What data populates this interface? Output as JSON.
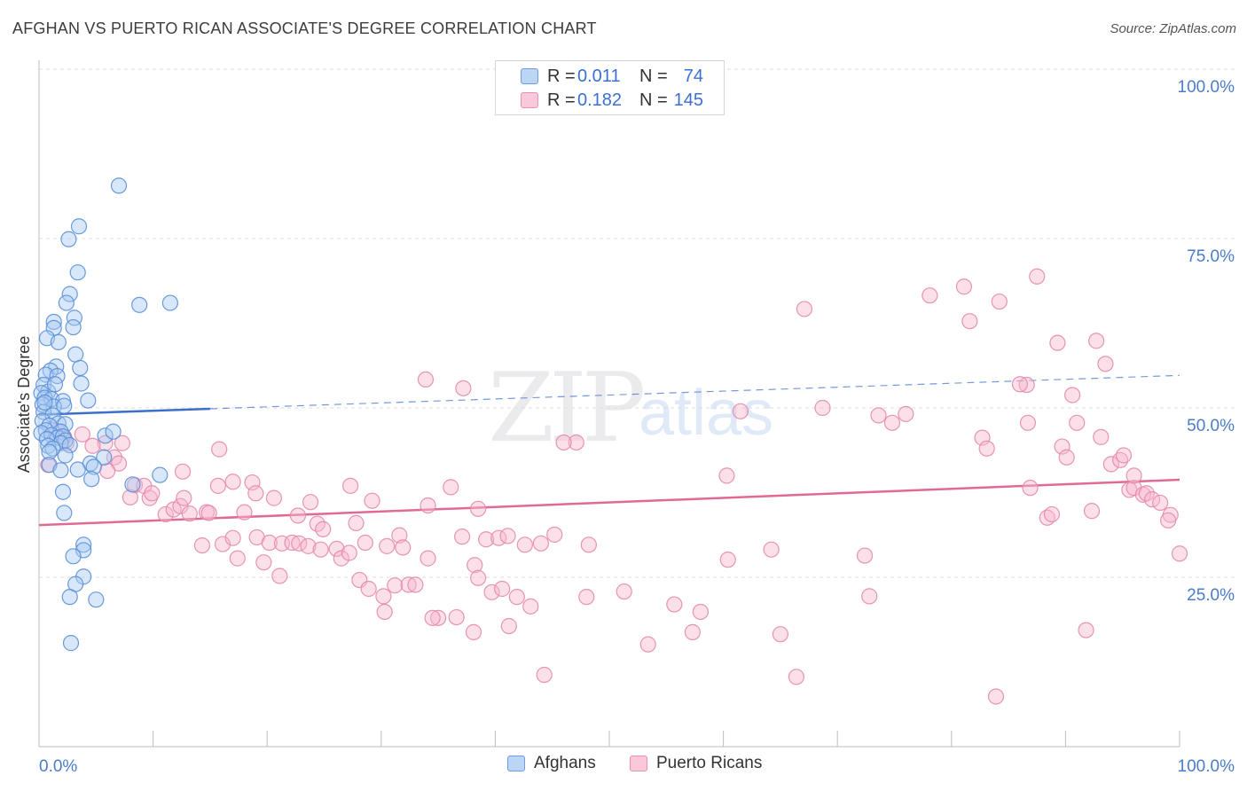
{
  "title": "AFGHAN VS PUERTO RICAN ASSOCIATE'S DEGREE CORRELATION CHART",
  "source": "Source: ZipAtlas.com",
  "watermark": {
    "zip": "ZIP",
    "atlas": "atlas"
  },
  "colors": {
    "afghans_fill": "#a9c9f2",
    "afghans_stroke": "#5b8fd8",
    "afghans_line": "#3a6fcc",
    "puerto_fill": "#f7b8cf",
    "puerto_stroke": "#e58aab",
    "puerto_line": "#e06a95",
    "tick_label": "#4a7cc9",
    "grid": "#dcdcdc"
  },
  "legend_top": {
    "rows": [
      {
        "r_label": "R =",
        "r_value": "0.011",
        "n_label": "N =",
        "n_value": "74"
      },
      {
        "r_label": "R =",
        "r_value": "0.182",
        "n_label": "N =",
        "n_value": "145"
      }
    ]
  },
  "legend_bottom": [
    "Afghans",
    "Puerto Ricans"
  ],
  "chart_data": {
    "type": "scatter",
    "title": "AFGHAN VS PUERTO RICAN ASSOCIATE'S DEGREE CORRELATION CHART",
    "xlabel": "",
    "ylabel": "Associate's Degree",
    "xlim": [
      0,
      100
    ],
    "ylim": [
      0,
      100
    ],
    "x_tick_labels": [
      "0.0%",
      "100.0%"
    ],
    "y_ticks": [
      25,
      50,
      75,
      100
    ],
    "y_tick_labels": [
      "25.0%",
      "50.0%",
      "75.0%",
      "100.0%"
    ],
    "grid": true,
    "legend_position": "top-center",
    "series": [
      {
        "name": "Afghans",
        "R": 0.011,
        "N": 74,
        "trend": {
          "x0": 0,
          "y0": 49.0,
          "x1": 100,
          "y1": 54.8,
          "solid_until_x": 15
        },
        "points": [
          [
            7.0,
            82.8
          ],
          [
            3.5,
            76.8
          ],
          [
            2.6,
            74.9
          ],
          [
            3.4,
            70.0
          ],
          [
            2.7,
            66.8
          ],
          [
            2.4,
            65.5
          ],
          [
            8.8,
            65.2
          ],
          [
            11.5,
            65.5
          ],
          [
            3.1,
            63.3
          ],
          [
            1.3,
            62.7
          ],
          [
            1.3,
            61.8
          ],
          [
            3.0,
            61.9
          ],
          [
            0.7,
            60.3
          ],
          [
            1.7,
            59.7
          ],
          [
            3.2,
            57.9
          ],
          [
            1.5,
            56.1
          ],
          [
            3.6,
            55.9
          ],
          [
            1.0,
            55.5
          ],
          [
            0.6,
            54.9
          ],
          [
            1.6,
            54.7
          ],
          [
            0.4,
            53.4
          ],
          [
            0.8,
            52.4
          ],
          [
            1.4,
            53.5
          ],
          [
            3.7,
            53.6
          ],
          [
            0.2,
            52.2
          ],
          [
            0.5,
            51.5
          ],
          [
            1.1,
            51.3
          ],
          [
            2.1,
            51.0
          ],
          [
            4.3,
            51.1
          ],
          [
            0.3,
            50.5
          ],
          [
            1.3,
            50.2
          ],
          [
            2.2,
            50.3
          ],
          [
            0.4,
            49.4
          ],
          [
            1.2,
            48.9
          ],
          [
            0.3,
            48.1
          ],
          [
            1.7,
            47.7
          ],
          [
            0.9,
            47.4
          ],
          [
            2.3,
            47.6
          ],
          [
            0.6,
            46.7
          ],
          [
            1.9,
            46.5
          ],
          [
            0.2,
            46.3
          ],
          [
            1.1,
            46.0
          ],
          [
            1.6,
            45.6
          ],
          [
            2.1,
            45.8
          ],
          [
            2.3,
            45.2
          ],
          [
            0.7,
            45.4
          ],
          [
            1.9,
            44.8
          ],
          [
            0.8,
            44.4
          ],
          [
            2.7,
            44.5
          ],
          [
            1.2,
            44.0
          ],
          [
            0.9,
            43.5
          ],
          [
            2.3,
            43.0
          ],
          [
            5.8,
            45.9
          ],
          [
            5.7,
            42.7
          ],
          [
            0.9,
            41.6
          ],
          [
            4.5,
            41.8
          ],
          [
            4.8,
            41.3
          ],
          [
            3.4,
            40.9
          ],
          [
            1.9,
            40.8
          ],
          [
            8.2,
            38.7
          ],
          [
            10.6,
            40.1
          ],
          [
            4.6,
            39.5
          ],
          [
            2.1,
            37.6
          ],
          [
            2.2,
            34.5
          ],
          [
            3.9,
            29.8
          ],
          [
            3.9,
            29.0
          ],
          [
            3.0,
            28.1
          ],
          [
            3.9,
            25.1
          ],
          [
            3.2,
            24.0
          ],
          [
            2.7,
            22.1
          ],
          [
            5.0,
            21.7
          ],
          [
            2.8,
            15.3
          ],
          [
            6.5,
            46.5
          ],
          [
            0.5,
            50.8
          ]
        ]
      },
      {
        "name": "Puerto Ricans",
        "R": 0.182,
        "N": 145,
        "trend": {
          "x0": 0,
          "y0": 32.7,
          "x1": 100,
          "y1": 39.4
        },
        "points": [
          [
            1.6,
            46.6
          ],
          [
            2.2,
            45.7
          ],
          [
            2.4,
            44.8
          ],
          [
            3.8,
            46.1
          ],
          [
            5.8,
            44.8
          ],
          [
            7.3,
            44.8
          ],
          [
            4.7,
            44.4
          ],
          [
            6.6,
            42.7
          ],
          [
            7.0,
            41.8
          ],
          [
            6.0,
            40.7
          ],
          [
            0.8,
            41.6
          ],
          [
            8.4,
            38.6
          ],
          [
            8.0,
            36.8
          ],
          [
            9.2,
            38.5
          ],
          [
            9.7,
            36.7
          ],
          [
            9.9,
            37.4
          ],
          [
            11.1,
            34.3
          ],
          [
            11.8,
            35.0
          ],
          [
            12.4,
            35.5
          ],
          [
            12.7,
            36.7
          ],
          [
            13.2,
            34.4
          ],
          [
            14.7,
            34.6
          ],
          [
            14.9,
            34.5
          ],
          [
            15.7,
            38.5
          ],
          [
            12.6,
            40.6
          ],
          [
            15.8,
            43.9
          ],
          [
            17.0,
            39.1
          ],
          [
            18.7,
            39.0
          ],
          [
            19.0,
            37.4
          ],
          [
            18.0,
            34.6
          ],
          [
            20.6,
            36.7
          ],
          [
            22.7,
            34.1
          ],
          [
            23.8,
            36.1
          ],
          [
            24.4,
            32.9
          ],
          [
            24.9,
            32.1
          ],
          [
            27.3,
            38.5
          ],
          [
            27.8,
            33.0
          ],
          [
            29.2,
            36.3
          ],
          [
            31.6,
            31.2
          ],
          [
            33.9,
            54.2
          ],
          [
            37.2,
            52.9
          ],
          [
            34.1,
            35.6
          ],
          [
            36.1,
            38.3
          ],
          [
            38.5,
            35.1
          ],
          [
            37.1,
            31.0
          ],
          [
            39.2,
            30.6
          ],
          [
            40.3,
            30.8
          ],
          [
            41.1,
            31.1
          ],
          [
            42.6,
            29.8
          ],
          [
            47.1,
            44.9
          ],
          [
            46.0,
            44.9
          ],
          [
            48.2,
            29.8
          ],
          [
            45.2,
            31.3
          ],
          [
            44.0,
            30.0
          ],
          [
            14.3,
            29.7
          ],
          [
            16.1,
            29.9
          ],
          [
            17.0,
            30.8
          ],
          [
            19.1,
            30.9
          ],
          [
            20.2,
            30.1
          ],
          [
            21.3,
            30.0
          ],
          [
            22.2,
            30.1
          ],
          [
            22.8,
            30.0
          ],
          [
            23.6,
            29.6
          ],
          [
            24.7,
            29.1
          ],
          [
            26.1,
            29.2
          ],
          [
            26.5,
            27.8
          ],
          [
            27.2,
            28.6
          ],
          [
            28.6,
            30.1
          ],
          [
            30.5,
            29.6
          ],
          [
            31.9,
            29.4
          ],
          [
            17.4,
            27.8
          ],
          [
            19.7,
            27.2
          ],
          [
            21.1,
            25.2
          ],
          [
            28.1,
            24.6
          ],
          [
            28.9,
            23.3
          ],
          [
            30.2,
            22.2
          ],
          [
            31.2,
            23.8
          ],
          [
            32.4,
            23.9
          ],
          [
            33.0,
            23.9
          ],
          [
            34.1,
            27.8
          ],
          [
            38.2,
            26.8
          ],
          [
            38.5,
            24.9
          ],
          [
            39.7,
            22.8
          ],
          [
            40.6,
            23.3
          ],
          [
            41.9,
            22.1
          ],
          [
            43.1,
            20.7
          ],
          [
            36.6,
            19.1
          ],
          [
            38.1,
            16.9
          ],
          [
            41.2,
            17.8
          ],
          [
            44.3,
            10.6
          ],
          [
            30.3,
            19.9
          ],
          [
            35.0,
            19.0
          ],
          [
            34.5,
            19.0
          ],
          [
            48.0,
            22.1
          ],
          [
            51.3,
            22.9
          ],
          [
            53.4,
            15.1
          ],
          [
            55.7,
            21.0
          ],
          [
            57.3,
            16.9
          ],
          [
            58.0,
            19.9
          ],
          [
            60.4,
            27.6
          ],
          [
            60.3,
            40.0
          ],
          [
            61.5,
            49.5
          ],
          [
            67.1,
            64.6
          ],
          [
            64.2,
            29.1
          ],
          [
            66.4,
            10.3
          ],
          [
            65.0,
            16.6
          ],
          [
            68.7,
            50.0
          ],
          [
            72.4,
            28.2
          ],
          [
            72.8,
            22.2
          ],
          [
            73.6,
            48.9
          ],
          [
            74.8,
            47.8
          ],
          [
            76.0,
            49.1
          ],
          [
            78.1,
            66.6
          ],
          [
            81.1,
            67.9
          ],
          [
            81.6,
            62.8
          ],
          [
            82.7,
            45.6
          ],
          [
            83.1,
            44.0
          ],
          [
            84.2,
            65.7
          ],
          [
            83.9,
            7.4
          ],
          [
            86.6,
            53.4
          ],
          [
            86.7,
            47.8
          ],
          [
            86.9,
            38.2
          ],
          [
            87.5,
            69.4
          ],
          [
            88.4,
            33.8
          ],
          [
            88.8,
            34.3
          ],
          [
            89.3,
            59.6
          ],
          [
            89.7,
            44.3
          ],
          [
            90.1,
            42.7
          ],
          [
            90.6,
            51.9
          ],
          [
            91.0,
            47.8
          ],
          [
            91.8,
            17.2
          ],
          [
            92.3,
            34.8
          ],
          [
            92.7,
            59.9
          ],
          [
            93.1,
            45.7
          ],
          [
            94.0,
            41.7
          ],
          [
            94.8,
            42.3
          ],
          [
            95.1,
            43.0
          ],
          [
            95.6,
            37.9
          ],
          [
            96.0,
            38.2
          ],
          [
            96.8,
            37.2
          ],
          [
            97.1,
            37.4
          ],
          [
            97.6,
            36.5
          ],
          [
            98.3,
            36.0
          ],
          [
            99.2,
            34.2
          ],
          [
            99.0,
            33.4
          ],
          [
            100.0,
            28.5
          ],
          [
            96.0,
            40.0
          ],
          [
            86.0,
            53.5
          ],
          [
            93.5,
            56.5
          ]
        ]
      }
    ]
  }
}
